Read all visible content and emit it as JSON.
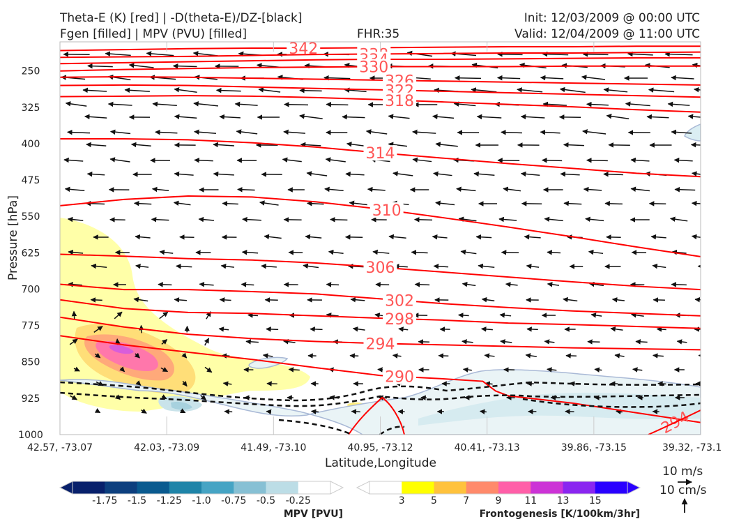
{
  "header": {
    "title_line1": "Theta-E (K) [red] | -D(theta-E)/DZ-[black]",
    "title_line2": "Fgen [filled] | MPV (PVU) [filled]",
    "fhr": "FHR:35",
    "init": "Init: 12/03/2009 @ 00:00 UTC",
    "valid": "Valid: 12/04/2009 @ 11:00 UTC"
  },
  "chart_data": {
    "type": "cross-section",
    "xlabel": "Latitude,Longitude",
    "ylabel": "Pressure [hPa]",
    "x_ticks": [
      "42.57, -73.07",
      "42.03, -73.09",
      "41.49, -73.10",
      "40.95, -73.12",
      "40.41, -73.13",
      "39.86, -73.15",
      "39.32, -73.1"
    ],
    "y_ticks": [
      250,
      325,
      400,
      475,
      550,
      625,
      700,
      775,
      850,
      925,
      1000
    ],
    "ylim": [
      1000,
      190
    ],
    "theta_e": {
      "color": "#ff0000",
      "contours": [
        {
          "label": "342",
          "x": [
            0,
            0.1,
            0.2,
            0.3,
            0.4,
            0.5,
            0.6,
            0.7,
            0.8,
            0.9,
            1
          ],
          "y": [
            208,
            206,
            204,
            203,
            203,
            202,
            201,
            200,
            200,
            199,
            199
          ]
        },
        {
          "label": "338",
          "x": [
            0,
            0.1,
            0.2,
            0.3,
            0.4,
            0.5,
            0.6,
            0.7,
            0.8,
            0.9,
            1
          ],
          "y": [
            222,
            221,
            220,
            218,
            216,
            215,
            214,
            213,
            213,
            212,
            211
          ]
        },
        {
          "label": "334",
          "x": [
            0,
            0.1,
            0.2,
            0.3,
            0.4,
            0.5,
            0.6,
            0.7,
            0.8,
            0.9,
            1
          ],
          "y": [
            235,
            233,
            231,
            229,
            227,
            226,
            226,
            225,
            224,
            223,
            223
          ]
        },
        {
          "label": "330",
          "x": [
            0,
            0.1,
            0.2,
            0.3,
            0.4,
            0.5,
            0.6,
            0.7,
            0.8,
            0.9,
            1
          ],
          "y": [
            250,
            247,
            245,
            243,
            242,
            241,
            241,
            241,
            240,
            240,
            240
          ]
        },
        {
          "label": "326",
          "x": [
            0,
            0.1,
            0.2,
            0.3,
            0.4,
            0.5,
            0.6,
            0.7,
            0.8,
            0.9,
            1
          ],
          "y": [
            263,
            262,
            263,
            265,
            267,
            269,
            271,
            273,
            275,
            277,
            279
          ]
        },
        {
          "label": "322",
          "x": [
            0,
            0.1,
            0.2,
            0.3,
            0.4,
            0.5,
            0.6,
            0.7,
            0.8,
            0.9,
            1
          ],
          "y": [
            280,
            279,
            280,
            283,
            286,
            289,
            292,
            295,
            298,
            301,
            304
          ]
        },
        {
          "label": "318",
          "x": [
            0,
            0.1,
            0.2,
            0.3,
            0.4,
            0.5,
            0.6,
            0.7,
            0.8,
            0.9,
            1
          ],
          "y": [
            303,
            302,
            301,
            302,
            305,
            309,
            314,
            319,
            324,
            330,
            335
          ]
        },
        {
          "label": "314",
          "x": [
            0,
            0.1,
            0.2,
            0.3,
            0.4,
            0.5,
            0.6,
            0.7,
            0.8,
            0.9,
            1
          ],
          "y": [
            390,
            390,
            392,
            398,
            407,
            419,
            430,
            441,
            451,
            461,
            468
          ]
        },
        {
          "label": "310",
          "x": [
            0,
            0.1,
            0.2,
            0.3,
            0.4,
            0.5,
            0.6,
            0.7,
            0.8,
            0.9,
            1
          ],
          "y": [
            528,
            515,
            508,
            510,
            520,
            535,
            553,
            572,
            592,
            613,
            633
          ]
        },
        {
          "label": "306",
          "x": [
            0,
            0.1,
            0.2,
            0.3,
            0.4,
            0.5,
            0.6,
            0.7,
            0.8,
            0.9,
            1
          ],
          "y": [
            628,
            632,
            637,
            640,
            646,
            655,
            665,
            675,
            685,
            694,
            701
          ]
        },
        {
          "label": "302",
          "x": [
            0,
            0.1,
            0.2,
            0.3,
            0.4,
            0.5,
            0.6,
            0.7,
            0.8,
            0.9,
            1
          ],
          "y": [
            690,
            701,
            701,
            705,
            710,
            720,
            730,
            738,
            745,
            750,
            755
          ]
        },
        {
          "label": "298",
          "x": [
            0,
            0.1,
            0.2,
            0.3,
            0.4,
            0.5,
            0.6,
            0.7,
            0.8,
            0.9,
            1
          ],
          "y": [
            722,
            740,
            748,
            750,
            755,
            760,
            764,
            770,
            773,
            777,
            781
          ]
        },
        {
          "label": "294",
          "x": [
            0,
            0.1,
            0.2,
            0.3,
            0.4,
            0.5,
            0.6,
            0.7,
            0.8,
            0.9,
            1
          ],
          "y": [
            758,
            778,
            793,
            802,
            808,
            812,
            815,
            818,
            821,
            823,
            825
          ]
        },
        {
          "label": "290",
          "x": [
            0,
            0.1,
            0.2,
            0.3,
            0.4,
            0.5,
            0.6,
            0.66,
            0.68,
            0.7,
            0.8,
            0.9,
            1
          ],
          "y": [
            796,
            815,
            830,
            845,
            862,
            878,
            885,
            890,
            910,
            920,
            935,
            955,
            975
          ]
        }
      ]
    },
    "dtheta_dz": {
      "color": "#111111",
      "style": "dashed"
    },
    "mpv_colorbar": {
      "label": "MPV [PVU]",
      "ticks": [
        "-1.75",
        "-1.5",
        "-1.25",
        "-1.0",
        "-0.75",
        "-0.5",
        "-0.25"
      ],
      "colors": [
        "#08206b",
        "#0d3f7e",
        "#0a5a8f",
        "#1f84a8",
        "#46a4c4",
        "#87c0d4",
        "#bcdde6",
        "#ffffff"
      ]
    },
    "fgen_colorbar": {
      "label": "Frontogenesis [K/100km/3hr]",
      "ticks": [
        "3",
        "5",
        "7",
        "9",
        "11",
        "13",
        "15"
      ],
      "colors": [
        "#ffffff",
        "#ffff00",
        "#ffc23d",
        "#ff8a6b",
        "#ff5fa8",
        "#cc33d6",
        "#8a26f0",
        "#2a00ff"
      ]
    },
    "vector_key": {
      "horizontal": "10 m/s",
      "vertical": "10 cm/s"
    }
  }
}
